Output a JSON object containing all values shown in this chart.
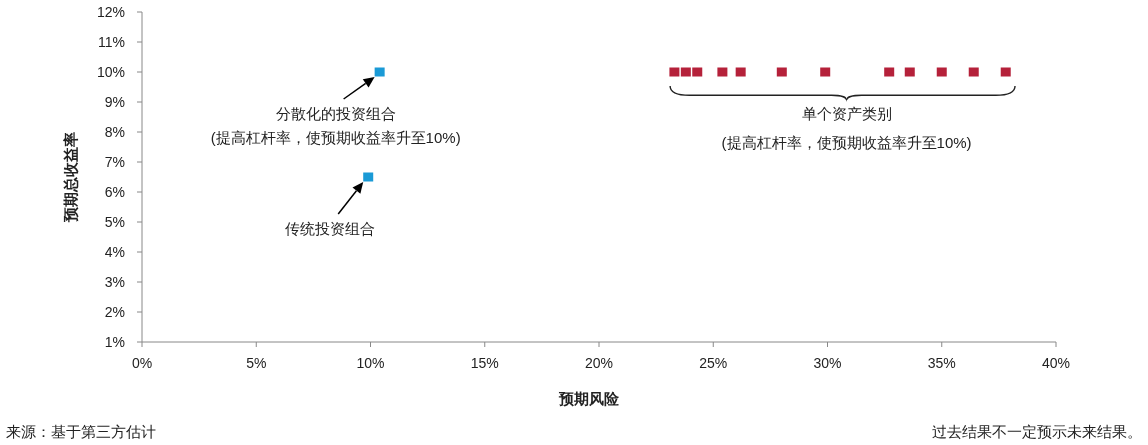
{
  "chart_data": {
    "type": "scatter",
    "xlabel": "预期风险",
    "ylabel": "预期总收益率",
    "series": [
      {
        "color": "#1a9ad6",
        "x": [
          10.4,
          9.9
        ],
        "values": [
          10,
          6.5
        ]
      },
      {
        "color": "#b5213a",
        "x": [
          23.3,
          23.8,
          24.3,
          25.4,
          26.2,
          28.0,
          29.9,
          32.7,
          33.6,
          35.0,
          36.4,
          37.8
        ],
        "values": [
          10,
          10,
          10,
          10,
          10,
          10,
          10,
          10,
          10,
          10,
          10,
          10
        ]
      }
    ],
    "marker": "square",
    "grid": false,
    "xlim": [
      0,
      40
    ],
    "ylim": [
      1,
      12
    ],
    "xticks": [
      {
        "value": 0,
        "label": "0%"
      },
      {
        "value": 5,
        "label": "5%"
      },
      {
        "value": 10,
        "label": "10%"
      },
      {
        "value": 15,
        "label": "15%"
      },
      {
        "value": 20,
        "label": "20%"
      },
      {
        "value": 25,
        "label": "25%"
      },
      {
        "value": 30,
        "label": "30%"
      },
      {
        "value": 35,
        "label": "35%"
      },
      {
        "value": 40,
        "label": "40%"
      }
    ],
    "yticks": [
      {
        "value": 1,
        "label": "1%"
      },
      {
        "value": 2,
        "label": "2%"
      },
      {
        "value": 3,
        "label": "3%"
      },
      {
        "value": 4,
        "label": "4%"
      },
      {
        "value": 5,
        "label": "5%"
      },
      {
        "value": 6,
        "label": "6%"
      },
      {
        "value": 7,
        "label": "7%"
      },
      {
        "value": 8,
        "label": "8%"
      },
      {
        "value": 9,
        "label": "9%"
      },
      {
        "value": 10,
        "label": "10%"
      },
      {
        "value": 11,
        "label": "11%"
      },
      {
        "value": 12,
        "label": "12%"
      }
    ],
    "annotations": [
      {
        "text": "分散化的投资组合\n(提高杠杆率，使预期收益率升至10%)",
        "x": 10.4,
        "y": 10
      },
      {
        "text": "传统投资组合",
        "x": 9.9,
        "y": 6.5
      },
      "单个资产类别\n(提高杠杆率，使预期收益率升至10%)",
      "来源：基于第三方估计",
      "过去结果不一定预示未来结果。"
    ]
  }
}
